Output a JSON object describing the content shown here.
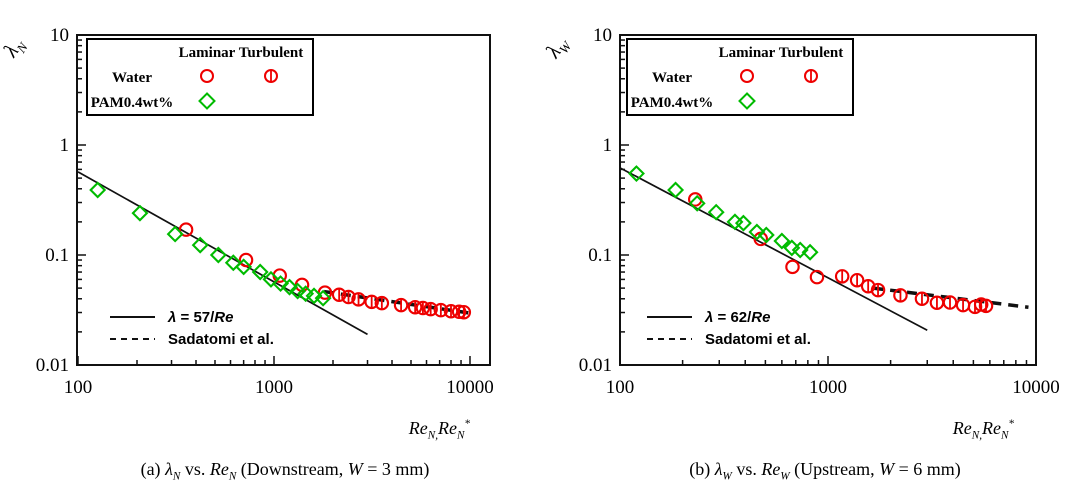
{
  "figure": {
    "background": "#ffffff",
    "colors": {
      "water": "#ee0000",
      "pam": "#00bb00",
      "line": "#111111",
      "text": "#000000"
    }
  },
  "legend": {
    "col_laminar": "Laminar",
    "col_turbulent": "Turbulent",
    "rows": [
      {
        "label": "Water",
        "color": "#ee0000",
        "laminar_shape": "circle",
        "turbulent_shape": "circle-bar"
      },
      {
        "label": "PAM0.4wt%",
        "color": "#00bb00",
        "laminar_shape": "diamond",
        "turbulent_shape": ""
      }
    ]
  },
  "panels": [
    {
      "id": "a",
      "ylabel_segments": [
        {
          "t": "λ",
          "i": true
        },
        {
          "t": "N",
          "sub": true,
          "i": true
        }
      ],
      "xlabel_segments": [
        {
          "t": "Re"
        },
        {
          "t": "N,",
          "sub": true
        },
        {
          "t": "Re"
        },
        {
          "t": "N",
          "sub": true
        },
        {
          "t": "*",
          "sup": true
        }
      ],
      "caption_segments": [
        {
          "t": "(a) "
        },
        {
          "t": "λ",
          "i": true
        },
        {
          "t": "N",
          "sub": true,
          "i": true
        },
        {
          "t": "  vs. "
        },
        {
          "t": "Re",
          "i": true
        },
        {
          "t": "N",
          "sub": true,
          "i": true
        },
        {
          "t": " (Downstream, "
        },
        {
          "t": "W",
          "i": true
        },
        {
          "t": " = 3 mm)"
        }
      ],
      "line_legend": [
        {
          "style": "solid",
          "segments": [
            {
              "t": "λ",
              "i": true
            },
            {
              "t": " = 57/"
            },
            {
              "t": "Re",
              "i": true
            }
          ]
        },
        {
          "style": "dashed",
          "segments": [
            {
              "t": "Sadatomi et al."
            }
          ]
        }
      ]
    },
    {
      "id": "b",
      "ylabel_segments": [
        {
          "t": "λ",
          "i": true
        },
        {
          "t": "W",
          "sub": true,
          "i": true
        }
      ],
      "xlabel_segments": [
        {
          "t": "Re"
        },
        {
          "t": "N,",
          "sub": true
        },
        {
          "t": "Re"
        },
        {
          "t": "N",
          "sub": true
        },
        {
          "t": "*",
          "sup": true
        }
      ],
      "caption_segments": [
        {
          "t": "(b) "
        },
        {
          "t": "λ",
          "i": true
        },
        {
          "t": "W",
          "sub": true,
          "i": true
        },
        {
          "t": "  vs. "
        },
        {
          "t": "Re",
          "i": true
        },
        {
          "t": "W",
          "sub": true,
          "i": true
        },
        {
          "t": " (Upstream, "
        },
        {
          "t": "W",
          "i": true
        },
        {
          "t": " = 6 mm)"
        }
      ],
      "line_legend": [
        {
          "style": "solid",
          "segments": [
            {
              "t": "λ",
              "i": true
            },
            {
              "t": " = 62/"
            },
            {
              "t": "Re",
              "i": true
            }
          ]
        },
        {
          "style": "dashed",
          "segments": [
            {
              "t": "Sadatomi et al."
            }
          ]
        }
      ]
    }
  ],
  "chart_data": [
    {
      "type": "scatter",
      "panel": "a",
      "xscale": "log",
      "yscale": "log",
      "xlim": [
        100,
        13000
      ],
      "ylim": [
        0.01,
        10
      ],
      "xlabel": "Re_N, Re_N*",
      "ylabel": "λ_N",
      "x_ticks": [
        100,
        1000,
        10000
      ],
      "y_ticks": [
        10,
        1,
        0.1,
        0.01
      ],
      "caption": "(a) λN vs. ReN (Downstream, W = 3 mm)",
      "series": [
        {
          "name": "Water laminar",
          "marker": "circle",
          "color": "#ee0000",
          "points": [
            [
              356,
              0.17
            ],
            [
              720,
              0.09
            ],
            [
              1070,
              0.065
            ],
            [
              1390,
              0.0535
            ],
            [
              1820,
              0.0455
            ]
          ]
        },
        {
          "name": "Water turbulent",
          "marker": "circle-bar",
          "color": "#ee0000",
          "points": [
            [
              2150,
              0.0435
            ],
            [
              2400,
              0.0415
            ],
            [
              2700,
              0.0395
            ],
            [
              3150,
              0.0375
            ],
            [
              3550,
              0.0365
            ],
            [
              4450,
              0.035
            ],
            [
              5250,
              0.0335
            ],
            [
              5750,
              0.033
            ],
            [
              6300,
              0.0322
            ],
            [
              7100,
              0.0315
            ],
            [
              8000,
              0.0308
            ],
            [
              8800,
              0.0305
            ],
            [
              9300,
              0.0302
            ]
          ]
        },
        {
          "name": "PAM0.4wt% laminar",
          "marker": "diamond",
          "color": "#00bb00",
          "points": [
            [
              126,
              0.39
            ],
            [
              207,
              0.24
            ],
            [
              313,
              0.155
            ],
            [
              420,
              0.123
            ],
            [
              520,
              0.1
            ],
            [
              620,
              0.085
            ],
            [
              700,
              0.078
            ],
            [
              850,
              0.07
            ],
            [
              965,
              0.06
            ],
            [
              1080,
              0.055
            ],
            [
              1200,
              0.051
            ],
            [
              1320,
              0.047
            ],
            [
              1450,
              0.0445
            ],
            [
              1600,
              0.0425
            ],
            [
              1780,
              0.0405
            ]
          ]
        }
      ],
      "lines": [
        {
          "label": "λ = 57/Re",
          "style": "solid",
          "color": "#111111",
          "points": [
            [
              100,
              0.57
            ],
            [
              3000,
              0.019
            ]
          ]
        },
        {
          "label": "Sadatomi et al.",
          "style": "dashed",
          "color": "#111111",
          "points": [
            [
              1800,
              0.0465
            ],
            [
              9800,
              0.0298
            ]
          ]
        }
      ]
    },
    {
      "type": "scatter",
      "panel": "b",
      "xscale": "log",
      "yscale": "log",
      "xlim": [
        100,
        10000
      ],
      "ylim": [
        0.01,
        10
      ],
      "xlabel": "Re_N, Re_N*",
      "ylabel": "λ_W",
      "x_ticks": [
        100,
        1000,
        10000
      ],
      "y_ticks": [
        10,
        1,
        0.1,
        0.01
      ],
      "caption": "(b) λW vs. ReW (Upstream, W = 6 mm)",
      "series": [
        {
          "name": "Water laminar",
          "marker": "circle",
          "color": "#ee0000",
          "points": [
            [
              230,
              0.32
            ],
            [
              475,
              0.14
            ],
            [
              675,
              0.078
            ],
            [
              885,
              0.063
            ]
          ]
        },
        {
          "name": "Water turbulent",
          "marker": "circle-bar",
          "color": "#ee0000",
          "points": [
            [
              1170,
              0.064
            ],
            [
              1380,
              0.059
            ],
            [
              1560,
              0.052
            ],
            [
              1740,
              0.048
            ],
            [
              2230,
              0.043
            ],
            [
              2830,
              0.04
            ],
            [
              3340,
              0.0368
            ],
            [
              3860,
              0.037
            ],
            [
              4460,
              0.035
            ],
            [
              5090,
              0.0338
            ],
            [
              5450,
              0.0355
            ],
            [
              5750,
              0.0345
            ]
          ]
        },
        {
          "name": "PAM0.4wt% laminar",
          "marker": "diamond",
          "color": "#00bb00",
          "points": [
            [
              120,
              0.55
            ],
            [
              185,
              0.39
            ],
            [
              235,
              0.295
            ],
            [
              290,
              0.245
            ],
            [
              357,
              0.2
            ],
            [
              392,
              0.195
            ],
            [
              455,
              0.162
            ],
            [
              505,
              0.152
            ],
            [
              600,
              0.134
            ],
            [
              670,
              0.116
            ],
            [
              735,
              0.111
            ],
            [
              820,
              0.106
            ]
          ]
        }
      ],
      "lines": [
        {
          "label": "λ = 62/Re",
          "style": "solid",
          "color": "#111111",
          "points": [
            [
              100,
              0.62
            ],
            [
              3000,
              0.0207
            ]
          ]
        },
        {
          "label": "Sadatomi et al.",
          "style": "dashed",
          "color": "#111111",
          "points": [
            [
              1650,
              0.05
            ],
            [
              9200,
              0.0335
            ]
          ]
        }
      ]
    }
  ]
}
